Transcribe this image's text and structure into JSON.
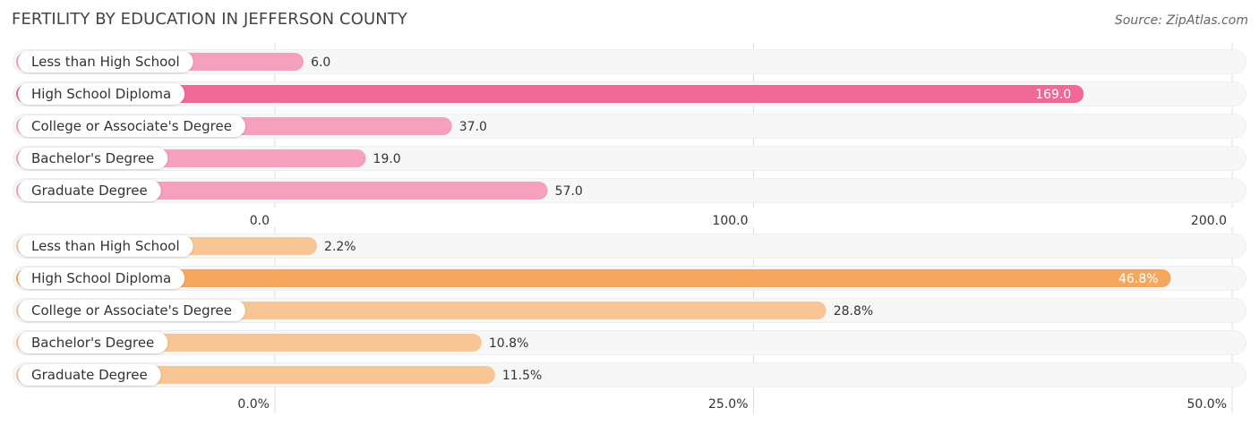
{
  "title": "FERTILITY BY EDUCATION IN JEFFERSON COUNTY",
  "source": "Source: ZipAtlas.com",
  "chart_data": [
    {
      "type": "bar",
      "orientation": "horizontal",
      "categories": [
        "Less than High School",
        "High School Diploma",
        "College or Associate's Degree",
        "Bachelor's Degree",
        "Graduate Degree"
      ],
      "values": [
        6.0,
        169.0,
        37.0,
        19.0,
        57.0
      ],
      "value_labels": [
        "6.0",
        "169.0",
        "37.0",
        "19.0",
        "57.0"
      ],
      "xlim": [
        0,
        200
      ],
      "ticks": [
        0,
        100,
        200
      ],
      "tick_labels": [
        "0.0",
        "100.0",
        "200.0"
      ],
      "highlight_index": 1,
      "colors": {
        "bar": "#f5a0bd",
        "highlight": "#f06895",
        "track": "#efefef"
      }
    },
    {
      "type": "bar",
      "orientation": "horizontal",
      "categories": [
        "Less than High School",
        "High School Diploma",
        "College or Associate's Degree",
        "Bachelor's Degree",
        "Graduate Degree"
      ],
      "values": [
        2.2,
        46.8,
        28.8,
        10.8,
        11.5
      ],
      "value_labels": [
        "2.2%",
        "46.8%",
        "28.8%",
        "10.8%",
        "11.5%"
      ],
      "xlim": [
        0,
        50
      ],
      "ticks": [
        0,
        25,
        50
      ],
      "tick_labels": [
        "0.0%",
        "25.0%",
        "50.0%"
      ],
      "highlight_index": 1,
      "colors": {
        "bar": "#f8c694",
        "highlight": "#f6a75e",
        "track": "#efefef"
      }
    }
  ]
}
